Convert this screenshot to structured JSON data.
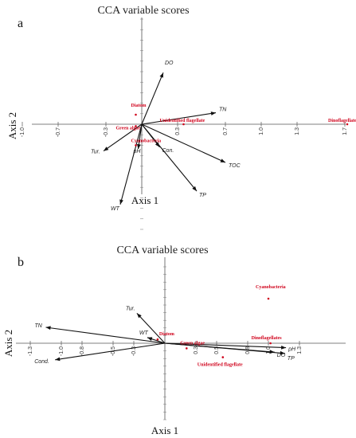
{
  "chart_data": [
    {
      "type": "scatter",
      "panel": "a",
      "title": "CCA variable scores",
      "xlabel": "Axis 1",
      "ylabel": "Axis 2",
      "xlim": [
        -1.0,
        1.7
      ],
      "ylim": [
        -0.6,
        0.6
      ],
      "xticks": [
        "-1.0",
        "-0.7",
        "-0.3",
        "0.3",
        "0.7",
        "1.0",
        "1.3",
        "1.7"
      ],
      "xtick_values": [
        -1.0,
        -0.7,
        -0.3,
        0.3,
        0.7,
        1.0,
        1.3,
        1.7
      ],
      "environmental_vectors": [
        {
          "label": "DO",
          "x": 0.18,
          "y": 0.27
        },
        {
          "label": "TN",
          "x": 0.62,
          "y": 0.06
        },
        {
          "label": "Tur.",
          "x": -0.32,
          "y": -0.14
        },
        {
          "label": "pH",
          "x": -0.03,
          "y": -0.13
        },
        {
          "label": "Con.",
          "x": 0.15,
          "y": -0.12
        },
        {
          "label": "TOC",
          "x": 0.7,
          "y": -0.2
        },
        {
          "label": "TP",
          "x": 0.46,
          "y": -0.35
        },
        {
          "label": "WT",
          "x": -0.18,
          "y": -0.42
        }
      ],
      "species": [
        {
          "label": "Diatom",
          "x": -0.05,
          "y": 0.05
        },
        {
          "label": "Green algae",
          "x": -0.05,
          "y": -0.01
        },
        {
          "label": "Unidentified flagellate",
          "x": 0.35,
          "y": 0.0
        },
        {
          "label": "Cyanobacteria",
          "x": -0.05,
          "y": -0.11
        },
        {
          "label": "Dinoflagellates",
          "x": 1.72,
          "y": 0.0
        }
      ],
      "species_color": "#d0021b"
    },
    {
      "type": "scatter",
      "panel": "b",
      "title": "CCA variable scores",
      "xlabel": "Axis 1",
      "ylabel": "Axis 2",
      "xlim": [
        -1.3,
        1.3
      ],
      "ylim": [
        -1.0,
        1.0
      ],
      "xticks": [
        "-1.3",
        "-1.0",
        "-0.8",
        "-0.5",
        "-0.3",
        "0.3",
        "0.5",
        "0.8",
        "1.0",
        "1.3"
      ],
      "xtick_values": [
        -1.3,
        -1.0,
        -0.8,
        -0.5,
        -0.3,
        0.3,
        0.5,
        0.8,
        1.0,
        1.3
      ],
      "environmental_vectors": [
        {
          "label": "TN",
          "x": -1.15,
          "y": 0.25
        },
        {
          "label": "Tur.",
          "x": -0.27,
          "y": 0.47
        },
        {
          "label": "WT",
          "x": -0.17,
          "y": 0.09
        },
        {
          "label": "Cond.",
          "x": -1.06,
          "y": -0.26
        },
        {
          "label": "pH",
          "x": 1.17,
          "y": -0.07
        },
        {
          "label": "DO",
          "x": 1.06,
          "y": -0.14
        },
        {
          "label": "TP",
          "x": 1.16,
          "y": -0.16
        }
      ],
      "species": [
        {
          "label": "Cyanobacteria",
          "x": 1.0,
          "y": 0.7
        },
        {
          "label": "Diatom",
          "x": -0.07,
          "y": 0.06
        },
        {
          "label": "Green algae",
          "x": 0.21,
          "y": -0.08
        },
        {
          "label": "Unidentified flagellate",
          "x": 0.56,
          "y": -0.22
        },
        {
          "label": "Dinoflagellates",
          "x": 1.02,
          "y": 0.0
        }
      ],
      "species_color": "#d0021b"
    }
  ],
  "colors": {
    "vector": "#111111",
    "axis": "#555555",
    "species": "#d0021b"
  }
}
